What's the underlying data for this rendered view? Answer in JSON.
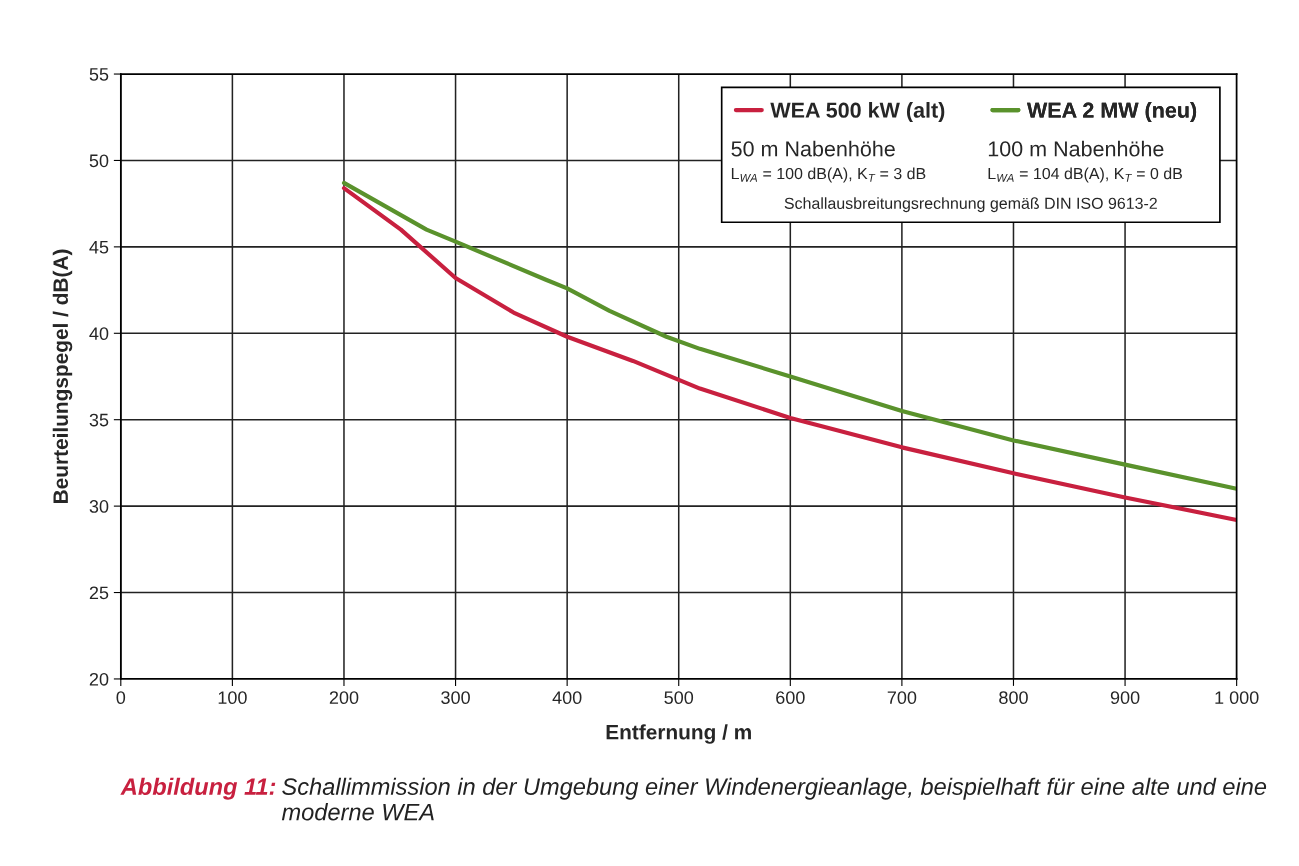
{
  "chart_data": {
    "type": "line",
    "xlabel": "Entfernung / m",
    "ylabel": "Beurteilungspegel / dB(A)",
    "series": [
      {
        "name": "WEA 500 kW (alt)",
        "color": "#c8203f",
        "x": [
          200,
          251,
          300,
          352,
          400,
          459,
          519,
          600,
          700,
          800,
          900,
          1000
        ],
        "values": [
          48.4,
          46.0,
          43.2,
          41.2,
          39.8,
          38.4,
          36.8,
          35.1,
          33.4,
          31.9,
          30.5,
          29.2
        ]
      },
      {
        "name": "WEA 2 MW (neu)",
        "color": "#5a922c",
        "x": [
          200,
          274,
          300,
          381,
          400,
          438,
          489,
          519,
          600,
          700,
          800,
          900,
          1000
        ],
        "values": [
          48.7,
          46.0,
          45.3,
          43.1,
          42.6,
          41.3,
          39.8,
          39.1,
          37.5,
          35.5,
          33.8,
          32.4,
          31.0
        ]
      }
    ],
    "xlim": [
      0,
      1000
    ],
    "ylim": [
      20,
      55
    ],
    "xticks": [
      0,
      100,
      200,
      300,
      400,
      500,
      600,
      700,
      800,
      900,
      {
        "value": 1000,
        "label": "1 000"
      }
    ],
    "yticks": [
      20,
      25,
      30,
      35,
      40,
      45,
      50,
      55
    ],
    "grid": true,
    "legend": "top right",
    "marker": "none",
    "line_style": "solid",
    "annotations": [
      "50 m Nabenhöhe",
      "100 m Nabenhöhe",
      "L$_{WA}$ = 100 dB(A), K$_{T}$ = 3 dB",
      "L$_{WA}$ = 104 dB(A), K$_{T}$ = 0 dB",
      "Schallausbreitungsrechnung gemäß DIN ISO 9613-2",
      "Abbildung 11:",
      "Schallimmission in der Umgebung einer Windenergieanlage, beispielhaft für eine alte und eine moderne WEA"
    ]
  }
}
